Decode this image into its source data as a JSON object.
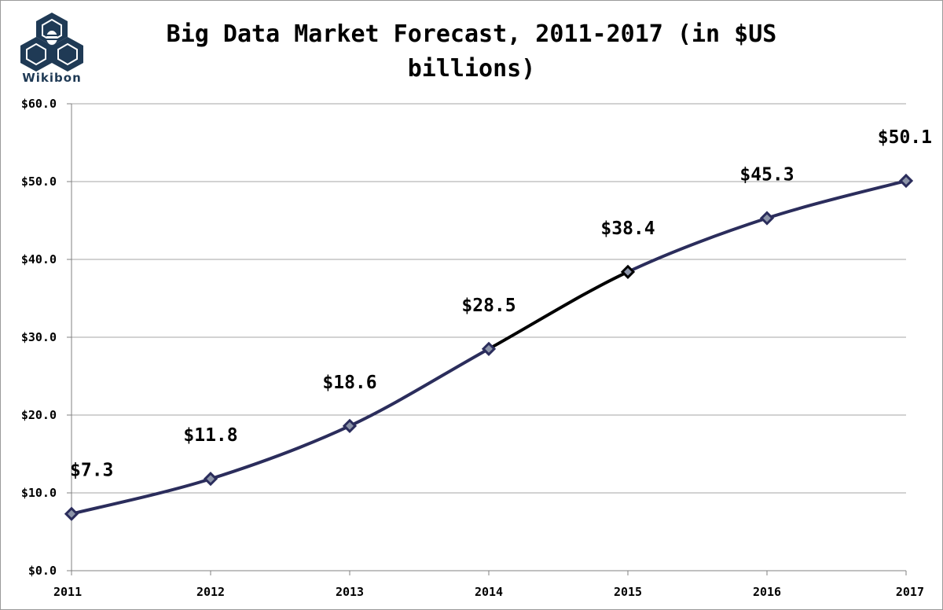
{
  "brand": {
    "logo_text": "Wikibon"
  },
  "chart_data": {
    "type": "line",
    "title": "Big Data Market Forecast, 2011-2017 (in $US billions)",
    "title_lines": [
      "Big Data Market Forecast, 2011-2017 (in $US",
      "billions)"
    ],
    "xlabel": "",
    "ylabel": "",
    "categories": [
      "2011",
      "2012",
      "2013",
      "2014",
      "2015",
      "2016",
      "2017"
    ],
    "series": [
      {
        "values": [
          7.3,
          11.8,
          18.6,
          28.5,
          38.4,
          45.3,
          50.1
        ],
        "color": "#2b2d5c"
      }
    ],
    "data_labels": [
      "$7.3",
      "$11.8",
      "$18.6",
      "$28.5",
      "$38.4",
      "$45.3",
      "$50.1"
    ],
    "highlight_segment": {
      "from": "2014",
      "to": "2015",
      "color": "#000000"
    },
    "ylim": [
      0,
      60
    ],
    "yticks": [
      0,
      10,
      20,
      30,
      40,
      50,
      60
    ],
    "ytick_labels": [
      "$0.0",
      "$10.0",
      "$20.0",
      "$30.0",
      "$40.0",
      "$50.0",
      "$60.0"
    ],
    "grid": true,
    "legend": "none",
    "marker": "diamond"
  }
}
